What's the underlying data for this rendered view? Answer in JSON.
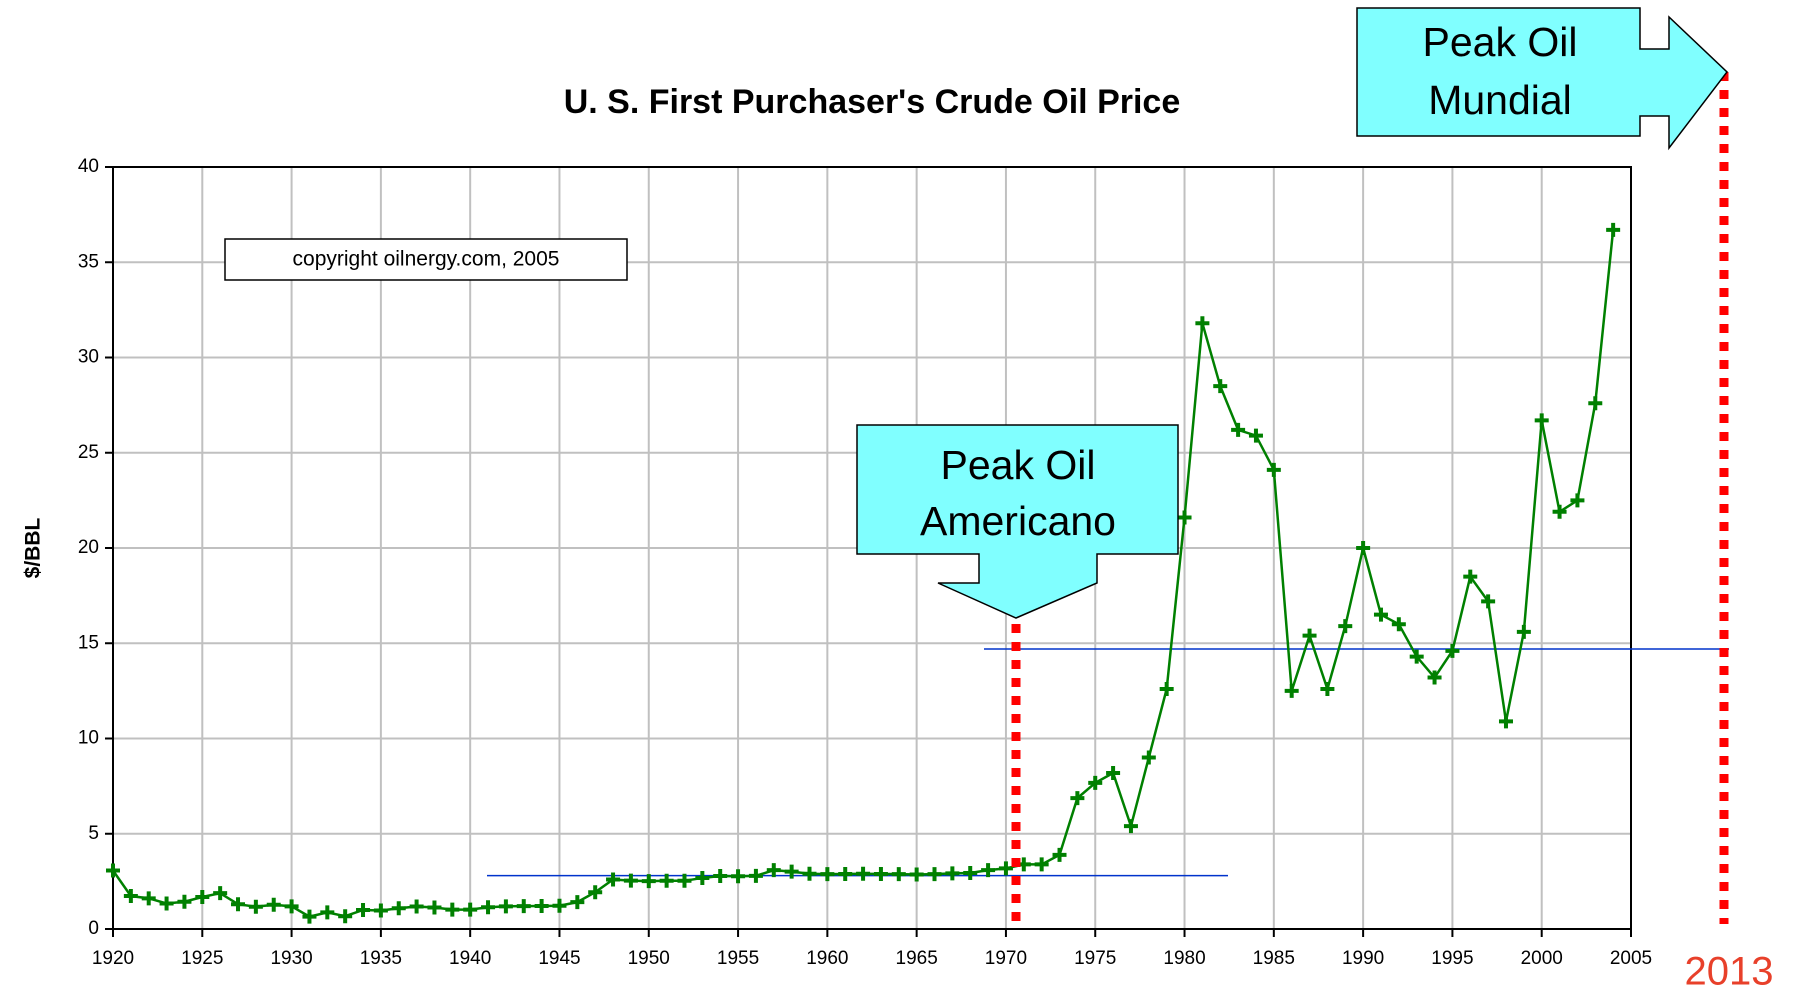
{
  "chart_data": {
    "type": "line",
    "title": "U. S. First Purchaser's Crude Oil Price",
    "y_label": "$/BBL",
    "x": [
      1920,
      1921,
      1922,
      1923,
      1924,
      1925,
      1926,
      1927,
      1928,
      1929,
      1930,
      1931,
      1932,
      1933,
      1934,
      1935,
      1936,
      1937,
      1938,
      1939,
      1940,
      1941,
      1942,
      1943,
      1944,
      1945,
      1946,
      1947,
      1948,
      1949,
      1950,
      1951,
      1952,
      1953,
      1954,
      1955,
      1956,
      1957,
      1958,
      1959,
      1960,
      1961,
      1962,
      1963,
      1964,
      1965,
      1966,
      1967,
      1968,
      1969,
      1970,
      1971,
      1972,
      1973,
      1974,
      1975,
      1976,
      1977,
      1978,
      1979,
      1980,
      1981,
      1982,
      1983,
      1984,
      1985,
      1986,
      1987,
      1988,
      1989,
      1990,
      1991,
      1992,
      1993,
      1994,
      1995,
      1996,
      1997,
      1998,
      1999,
      2000,
      2001,
      2002,
      2003,
      2004
    ],
    "series": [
      {
        "name": "Crude Oil Price",
        "color": "#008000",
        "values": [
          3.07,
          1.73,
          1.61,
          1.34,
          1.43,
          1.68,
          1.88,
          1.3,
          1.17,
          1.27,
          1.19,
          0.65,
          0.87,
          0.67,
          1.0,
          0.97,
          1.09,
          1.18,
          1.13,
          1.02,
          1.02,
          1.14,
          1.19,
          1.2,
          1.21,
          1.22,
          1.41,
          1.93,
          2.6,
          2.54,
          2.51,
          2.53,
          2.53,
          2.68,
          2.78,
          2.77,
          2.79,
          3.09,
          3.01,
          2.9,
          2.88,
          2.89,
          2.9,
          2.89,
          2.88,
          2.86,
          2.88,
          2.92,
          2.94,
          3.09,
          3.18,
          3.39,
          3.39,
          3.89,
          6.87,
          7.67,
          8.19,
          5.4,
          9.0,
          12.6,
          21.6,
          31.8,
          28.5,
          26.2,
          25.9,
          24.1,
          12.5,
          15.4,
          12.6,
          15.9,
          20.0,
          16.5,
          16.0,
          14.3,
          13.2,
          14.6,
          18.5,
          17.2,
          10.9,
          15.6,
          26.7,
          21.9,
          22.5,
          27.6,
          36.7
        ]
      }
    ],
    "xlim": [
      1920,
      2005
    ],
    "xticks": [
      1920,
      1925,
      1930,
      1935,
      1940,
      1945,
      1950,
      1955,
      1960,
      1965,
      1970,
      1975,
      1980,
      1985,
      1990,
      1995,
      2000,
      2005
    ],
    "ylim": [
      0,
      40
    ],
    "yticks": [
      0,
      5,
      10,
      15,
      20,
      25,
      30,
      35,
      40
    ],
    "grid": true,
    "reference_lines": [
      2.8,
      14.7
    ],
    "annotations": {
      "copyright": "copyright oilnergy.com, 2005",
      "us_peak": [
        "Peak Oil",
        "Americano"
      ],
      "world_peak": [
        "Peak Oil",
        "Mundial"
      ],
      "world_year": "2013"
    }
  }
}
